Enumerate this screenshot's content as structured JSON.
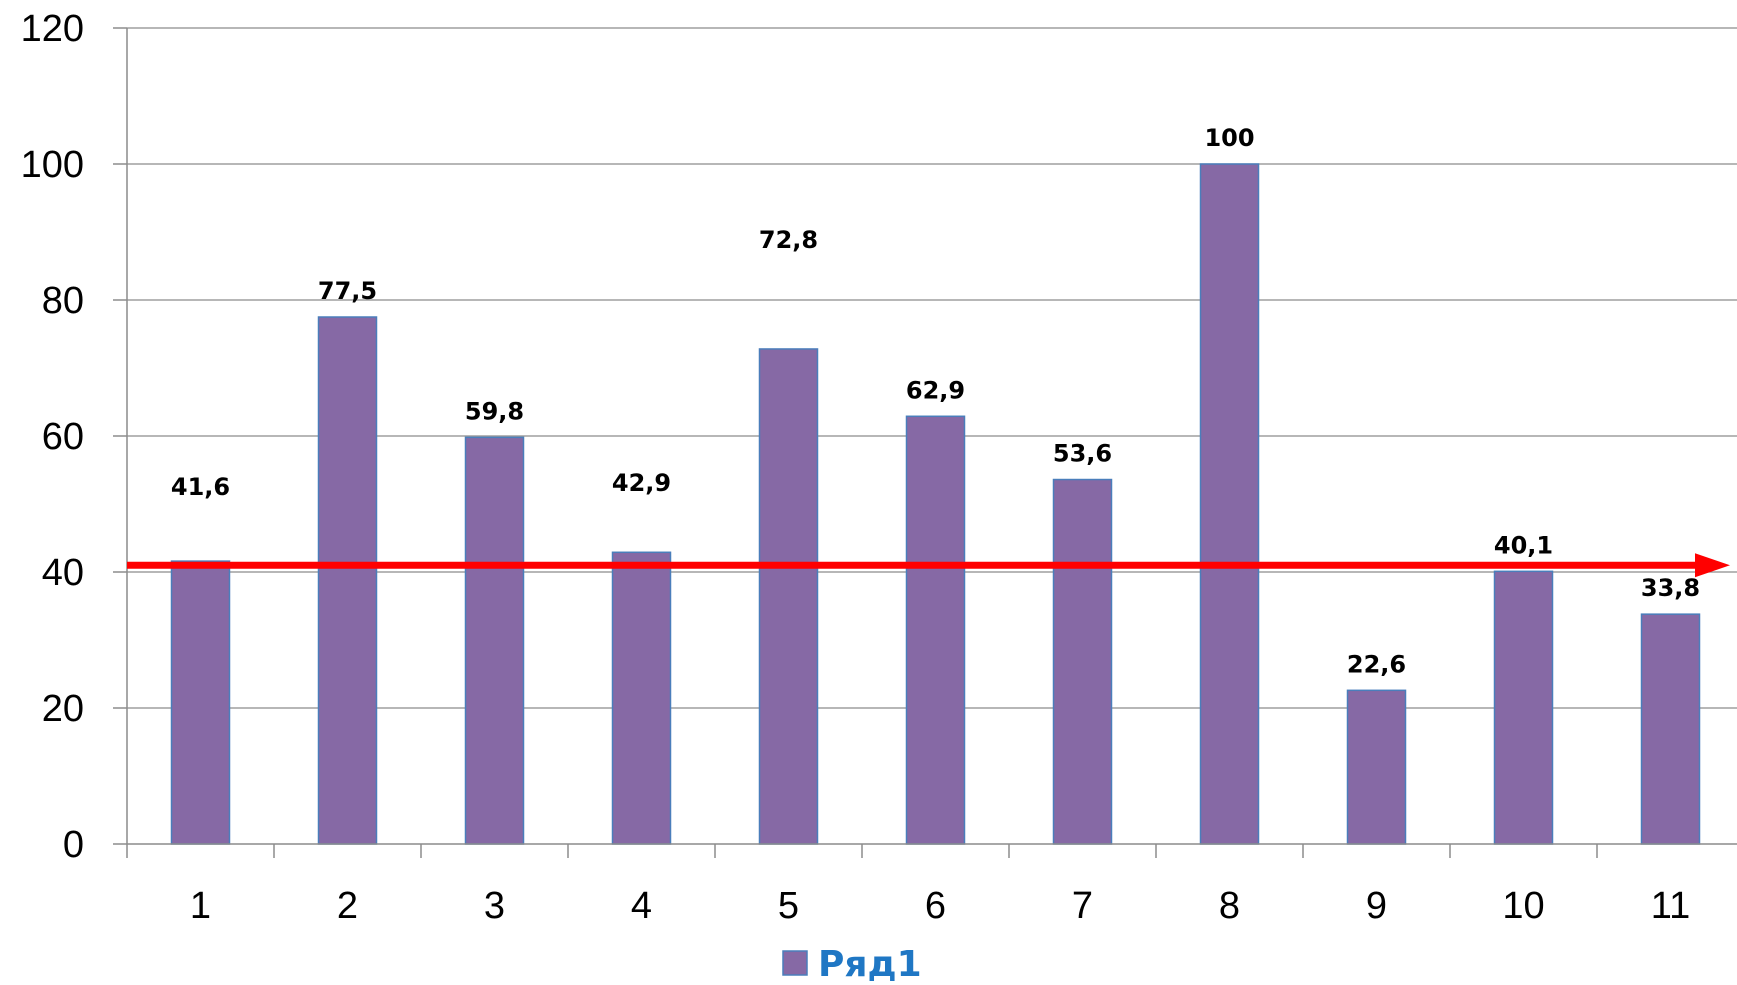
{
  "chart_data": {
    "type": "bar",
    "categories": [
      "1",
      "2",
      "3",
      "4",
      "5",
      "6",
      "7",
      "8",
      "9",
      "10",
      "11"
    ],
    "series": [
      {
        "name": "Ряд1",
        "values": [
          41.6,
          77.5,
          59.8,
          42.9,
          72.8,
          62.9,
          53.6,
          100,
          22.6,
          40.1,
          33.8
        ],
        "labels": [
          "41,6",
          "77,5",
          "59,8",
          "42,9",
          "72,8",
          "62,9",
          "53,6",
          "100",
          "22,6",
          "40,1",
          "33,8"
        ],
        "color": "#8669A5",
        "edge_color": "#4A7EBB"
      }
    ],
    "ylim": [
      0,
      120
    ],
    "yticks": [
      0,
      20,
      40,
      60,
      80,
      100,
      120
    ],
    "ytick_labels": [
      "0",
      "20",
      "40",
      "60",
      "80",
      "100",
      "120"
    ],
    "grid": true,
    "legend": {
      "position": "bottom",
      "text": "Ряд1",
      "color": "#1F77C4"
    },
    "reference_line": {
      "value": 41,
      "color": "#FF0000",
      "arrow": true
    }
  }
}
